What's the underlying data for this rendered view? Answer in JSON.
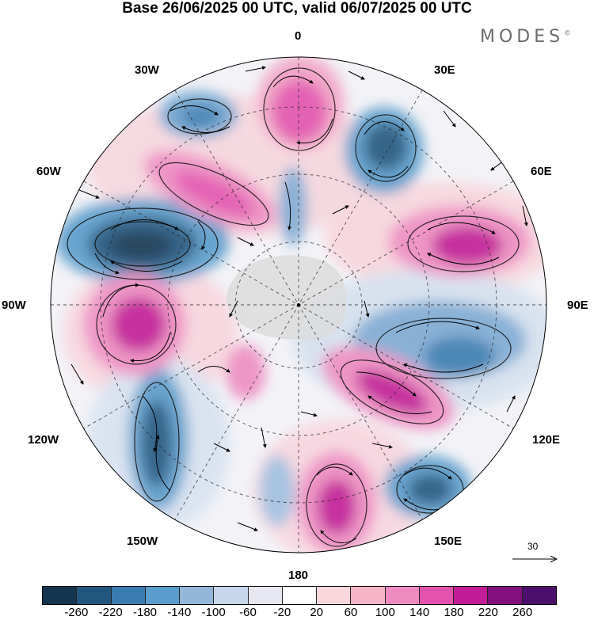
{
  "header": {
    "title": "Base 26/06/2025 00 UTC, valid 06/07/2025 00 UTC",
    "brand": "MODES",
    "brand_mark": "©"
  },
  "map": {
    "projection": "south polar stereographic",
    "longitude_labels": {
      "top": "0",
      "upper_left": "30W",
      "upper_right": "30E",
      "left_upper": "60W",
      "right_upper": "60E",
      "left": "90W",
      "right": "90E",
      "left_lower": "120W",
      "right_lower": "120E",
      "lower_left": "150W",
      "lower_right": "150E",
      "bottom": "180"
    },
    "vector_scale_label": "30",
    "colors": {
      "strong_negative": "#1f4f7a",
      "negative": "#4f8fc0",
      "weak_negative": "#c9d8ea",
      "neutral": "#ffffff",
      "weak_positive": "#f6d3dc",
      "positive": "#e774b3",
      "strong_positive": "#a0158f",
      "land_shade": "#e3e3e3"
    }
  },
  "colorbar": {
    "colors": [
      "#15344f",
      "#21577f",
      "#3a7cb0",
      "#5a9ccb",
      "#93b7d8",
      "#c7d6ea",
      "#e7e7f2",
      "#ffffff",
      "#fad7dc",
      "#f5b4c6",
      "#ee8cc1",
      "#e353ad",
      "#c21c96",
      "#82117f",
      "#4c0f6b"
    ],
    "tick_labels": [
      "-260",
      "-220",
      "-180",
      "-140",
      "-100",
      "-60",
      "-20",
      "20",
      "60",
      "100",
      "140",
      "180",
      "220",
      "260"
    ]
  }
}
